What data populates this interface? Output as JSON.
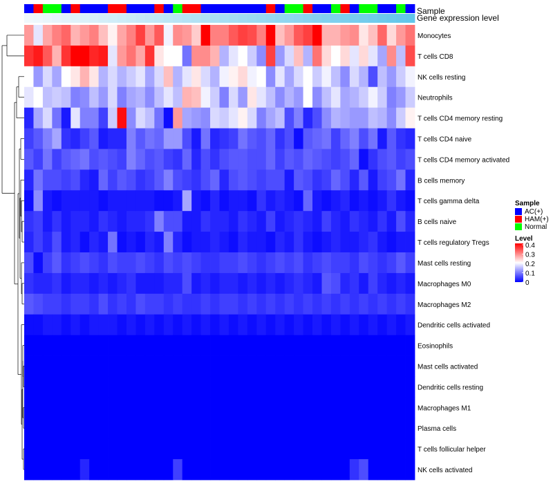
{
  "chart_data": {
    "type": "heatmap",
    "title": "",
    "annotation_rows": [
      "Sample",
      "Gene expression level"
    ],
    "sample_groups": [
      "AC(+)",
      "HAM(+)",
      "Normal",
      "Normal",
      "AC(+)",
      "HAM(+)",
      "AC(+)",
      "AC(+)",
      "AC(+)",
      "HAM(+)",
      "HAM(+)",
      "AC(+)",
      "AC(+)",
      "AC(+)",
      "HAM(+)",
      "AC(+)",
      "Normal",
      "HAM(+)",
      "HAM(+)",
      "AC(+)",
      "AC(+)",
      "AC(+)",
      "AC(+)",
      "AC(+)",
      "AC(+)",
      "AC(+)",
      "HAM(+)",
      "AC(+)",
      "Normal",
      "Normal",
      "HAM(+)",
      "AC(+)",
      "AC(+)",
      "Normal",
      "HAM(+)",
      "AC(+)",
      "Normal",
      "Normal",
      "AC(+)",
      "AC(+)",
      "Normal",
      "AC(+)"
    ],
    "expression_level": [
      0.3,
      0.34,
      0.38,
      0.42,
      0.46,
      0.5,
      0.54,
      0.58,
      0.62,
      0.66,
      0.7,
      0.74,
      0.78,
      0.82,
      0.86,
      0.9,
      0.94,
      0.98,
      1.02,
      1.06,
      1.1,
      1.14,
      1.18,
      1.22,
      1.26,
      1.3,
      1.34,
      1.38,
      1.42,
      1.46,
      1.5,
      1.54,
      1.58,
      1.62,
      1.66,
      1.7,
      1.74,
      1.78,
      1.82,
      1.86,
      1.9,
      1.94
    ],
    "rows": [
      "Monocytes",
      "T cells CD8",
      "NK cells resting",
      "Neutrophils",
      "T cells CD4 memory resting",
      "T cells CD4 naive",
      "T cells CD4 memory activated",
      "B cells memory",
      "T cells gamma delta",
      "B cells naive",
      "T cells regulatory  Tregs",
      "Mast cells resting",
      "Macrophages M0",
      "Macrophages M2",
      "Dendritic cells activated",
      "Eosinophils",
      "Mast cells activated",
      "Dendritic cells resting",
      "Macrophages M1",
      "Plasma cells",
      "T cells follicular helper",
      "NK cells activated"
    ],
    "values": [
      [
        0.28,
        0.18,
        0.27,
        0.3,
        0.32,
        0.26,
        0.28,
        0.3,
        0.25,
        0.21,
        0.27,
        0.3,
        0.35,
        0.28,
        0.33,
        0.19,
        0.29,
        0.28,
        0.24,
        0.4,
        0.3,
        0.3,
        0.33,
        0.35,
        0.34,
        0.3,
        0.4,
        0.25,
        0.28,
        0.33,
        0.35,
        0.4,
        0.26,
        0.26,
        0.28,
        0.29,
        0.22,
        0.25,
        0.32,
        0.23,
        0.28,
        0.31
      ],
      [
        0.36,
        0.38,
        0.33,
        0.26,
        0.36,
        0.42,
        0.4,
        0.37,
        0.38,
        0.18,
        0.28,
        0.31,
        0.27,
        0.36,
        0.22,
        0.2,
        0.2,
        0.09,
        0.29,
        0.29,
        0.26,
        0.14,
        0.18,
        0.2,
        0.16,
        0.11,
        0.35,
        0.12,
        0.17,
        0.25,
        0.14,
        0.31,
        0.23,
        0.2,
        0.23,
        0.18,
        0.23,
        0.18,
        0.13,
        0.29,
        0.15,
        0.34
      ],
      [
        0.2,
        0.12,
        0.17,
        0.13,
        0.2,
        0.22,
        0.26,
        0.22,
        0.14,
        0.17,
        0.14,
        0.16,
        0.18,
        0.13,
        0.17,
        0.25,
        0.14,
        0.18,
        0.22,
        0.17,
        0.14,
        0.19,
        0.21,
        0.23,
        0.19,
        0.2,
        0.11,
        0.18,
        0.13,
        0.17,
        0.2,
        0.16,
        0.19,
        0.15,
        0.11,
        0.17,
        0.14,
        0.06,
        0.15,
        0.12,
        0.16,
        0.19
      ],
      [
        0.18,
        0.2,
        0.15,
        0.16,
        0.15,
        0.1,
        0.11,
        0.15,
        0.12,
        0.17,
        0.1,
        0.13,
        0.14,
        0.11,
        0.15,
        0.18,
        0.15,
        0.26,
        0.25,
        0.19,
        0.16,
        0.1,
        0.17,
        0.12,
        0.22,
        0.18,
        0.15,
        0.11,
        0.14,
        0.12,
        0.2,
        0.11,
        0.15,
        0.18,
        0.13,
        0.14,
        0.16,
        0.19,
        0.16,
        0.1,
        0.12,
        0.16
      ],
      [
        0.03,
        0.13,
        0.17,
        0.09,
        0.02,
        0.18,
        0.1,
        0.1,
        0.05,
        0.16,
        0.39,
        0.11,
        0.17,
        0.15,
        0.09,
        0.01,
        0.28,
        0.13,
        0.12,
        0.11,
        0.17,
        0.16,
        0.18,
        0.21,
        0.17,
        0.1,
        0.13,
        0.15,
        0.06,
        0.1,
        0.03,
        0.06,
        0.11,
        0.14,
        0.13,
        0.12,
        0.12,
        0.15,
        0.14,
        0.11,
        0.16,
        0.21
      ],
      [
        0.05,
        0.07,
        0.1,
        0.13,
        0.04,
        0.03,
        0.05,
        0.07,
        0.02,
        0.03,
        0.03,
        0.1,
        0.07,
        0.09,
        0.08,
        0.12,
        0.12,
        0.06,
        0.02,
        0.09,
        0.03,
        0.04,
        0.05,
        0.09,
        0.07,
        0.06,
        0.08,
        0.04,
        0.06,
        0.01,
        0.07,
        0.08,
        0.09,
        0.05,
        0.08,
        0.1,
        0.06,
        0.09,
        0.02,
        0.07,
        0.04,
        0.03
      ],
      [
        0.07,
        0.05,
        0.09,
        0.05,
        0.07,
        0.08,
        0.09,
        0.06,
        0.07,
        0.06,
        0.05,
        0.1,
        0.08,
        0.06,
        0.07,
        0.05,
        0.04,
        0.08,
        0.03,
        0.06,
        0.04,
        0.06,
        0.07,
        0.07,
        0.06,
        0.06,
        0.08,
        0.05,
        0.07,
        0.06,
        0.08,
        0.07,
        0.06,
        0.05,
        0.06,
        0.08,
        0.01,
        0.04,
        0.06,
        0.07,
        0.05,
        0.06
      ],
      [
        0.03,
        0.09,
        0.06,
        0.06,
        0.05,
        0.06,
        0.03,
        0.02,
        0.08,
        0.05,
        0.07,
        0.06,
        0.04,
        0.05,
        0.07,
        0.1,
        0.06,
        0.05,
        0.04,
        0.06,
        0.08,
        0.03,
        0.06,
        0.07,
        0.06,
        0.05,
        0.06,
        0.06,
        0.02,
        0.07,
        0.06,
        0.04,
        0.05,
        0.08,
        0.06,
        0.03,
        0.07,
        0.02,
        0.05,
        0.06,
        0.09,
        0.03
      ],
      [
        0.01,
        0.11,
        0.02,
        0.01,
        0.02,
        0.02,
        0.02,
        0.02,
        0.01,
        0.02,
        0.02,
        0.02,
        0.02,
        0.02,
        0.01,
        0.01,
        0.02,
        0.13,
        0.02,
        0.01,
        0.03,
        0.01,
        0.02,
        0.02,
        0.01,
        0.04,
        0.02,
        0.03,
        0.02,
        0.01,
        0.08,
        0.02,
        0.01,
        0.02,
        0.03,
        0.01,
        0.02,
        0.01,
        0.02,
        0.04,
        0.02,
        0.01
      ],
      [
        0.04,
        0.05,
        0.02,
        0.04,
        0.02,
        0.03,
        0.03,
        0.02,
        0.04,
        0.03,
        0.02,
        0.03,
        0.03,
        0.04,
        0.1,
        0.06,
        0.06,
        0.02,
        0.02,
        0.04,
        0.03,
        0.03,
        0.02,
        0.04,
        0.03,
        0.02,
        0.05,
        0.02,
        0.03,
        0.04,
        0.03,
        0.02,
        0.05,
        0.03,
        0.02,
        0.04,
        0.03,
        0.02,
        0.04,
        0.02,
        0.06,
        0.03
      ],
      [
        0.03,
        0.05,
        0.03,
        0.06,
        0.02,
        0.03,
        0.01,
        0.03,
        0.02,
        0.09,
        0.01,
        0.02,
        0.01,
        0.03,
        0.02,
        0.1,
        0.03,
        0.01,
        0.02,
        0.02,
        0.03,
        0.02,
        0.01,
        0.03,
        0.02,
        0.02,
        0.01,
        0.03,
        0.02,
        0.04,
        0.02,
        0.01,
        0.02,
        0.03,
        0.02,
        0.02,
        0.03,
        0.04,
        0.02,
        0.01,
        0.02,
        0.02
      ],
      [
        0.06,
        0.01,
        0.05,
        0.07,
        0.04,
        0.05,
        0.06,
        0.05,
        0.04,
        0.06,
        0.05,
        0.05,
        0.06,
        0.05,
        0.04,
        0.06,
        0.05,
        0.06,
        0.05,
        0.04,
        0.04,
        0.05,
        0.05,
        0.06,
        0.05,
        0.04,
        0.05,
        0.06,
        0.05,
        0.06,
        0.04,
        0.05,
        0.06,
        0.05,
        0.05,
        0.04,
        0.06,
        0.05,
        0.04,
        0.05,
        0.07,
        0.05
      ],
      [
        0.04,
        0.03,
        0.03,
        0.04,
        0.02,
        0.03,
        0.03,
        0.02,
        0.03,
        0.02,
        0.03,
        0.04,
        0.02,
        0.02,
        0.02,
        0.03,
        0.03,
        0.06,
        0.02,
        0.03,
        0.02,
        0.03,
        0.03,
        0.02,
        0.03,
        0.02,
        0.03,
        0.02,
        0.03,
        0.04,
        0.03,
        0.02,
        0.07,
        0.06,
        0.03,
        0.04,
        0.02,
        0.05,
        0.03,
        0.02,
        0.03,
        0.02
      ],
      [
        0.07,
        0.06,
        0.05,
        0.05,
        0.04,
        0.05,
        0.05,
        0.04,
        0.06,
        0.04,
        0.05,
        0.04,
        0.06,
        0.05,
        0.05,
        0.04,
        0.05,
        0.04,
        0.04,
        0.05,
        0.04,
        0.05,
        0.05,
        0.04,
        0.05,
        0.04,
        0.05,
        0.04,
        0.05,
        0.04,
        0.05,
        0.04,
        0.05,
        0.04,
        0.05,
        0.04,
        0.05,
        0.04,
        0.05,
        0.04,
        0.05,
        0.04
      ],
      [
        0.01,
        0.01,
        0.02,
        0.02,
        0.01,
        0.02,
        0.01,
        0.02,
        0.02,
        0.02,
        0.01,
        0.02,
        0.01,
        0.02,
        0.01,
        0.02,
        0.01,
        0.02,
        0.01,
        0.02,
        0.01,
        0.02,
        0.01,
        0.02,
        0.01,
        0.02,
        0.01,
        0.02,
        0.01,
        0.02,
        0.01,
        0.02,
        0.01,
        0.02,
        0.01,
        0.02,
        0.01,
        0.02,
        0.01,
        0.02,
        0.01,
        0.02
      ],
      [
        0,
        0,
        0,
        0,
        0,
        0,
        0,
        0,
        0,
        0,
        0,
        0,
        0,
        0,
        0,
        0,
        0,
        0,
        0,
        0,
        0,
        0,
        0,
        0,
        0,
        0,
        0,
        0,
        0,
        0,
        0,
        0,
        0,
        0,
        0,
        0,
        0,
        0,
        0,
        0,
        0,
        0
      ],
      [
        0,
        0,
        0,
        0,
        0,
        0,
        0,
        0,
        0,
        0,
        0,
        0,
        0,
        0,
        0,
        0,
        0,
        0,
        0,
        0,
        0,
        0,
        0,
        0,
        0,
        0,
        0,
        0,
        0,
        0,
        0,
        0,
        0,
        0,
        0,
        0,
        0,
        0,
        0,
        0,
        0,
        0
      ],
      [
        0,
        0,
        0,
        0,
        0,
        0,
        0,
        0,
        0,
        0,
        0,
        0,
        0,
        0,
        0,
        0,
        0,
        0,
        0,
        0,
        0,
        0,
        0,
        0,
        0,
        0,
        0,
        0,
        0,
        0,
        0,
        0,
        0,
        0,
        0,
        0,
        0,
        0,
        0,
        0,
        0,
        0
      ],
      [
        0,
        0,
        0,
        0,
        0,
        0,
        0,
        0,
        0,
        0,
        0,
        0,
        0,
        0,
        0,
        0,
        0,
        0,
        0,
        0,
        0,
        0,
        0,
        0,
        0,
        0,
        0,
        0,
        0,
        0,
        0,
        0,
        0,
        0,
        0,
        0,
        0,
        0,
        0,
        0,
        0,
        0
      ],
      [
        0,
        0,
        0,
        0,
        0,
        0,
        0,
        0,
        0,
        0,
        0,
        0,
        0,
        0,
        0,
        0,
        0,
        0,
        0,
        0,
        0,
        0,
        0,
        0,
        0,
        0,
        0,
        0,
        0,
        0,
        0,
        0,
        0,
        0,
        0,
        0,
        0,
        0,
        0,
        0,
        0,
        0
      ],
      [
        0,
        0,
        0,
        0,
        0,
        0,
        0,
        0,
        0,
        0,
        0,
        0,
        0,
        0,
        0,
        0,
        0,
        0,
        0,
        0,
        0,
        0,
        0,
        0,
        0,
        0,
        0,
        0,
        0,
        0,
        0,
        0,
        0,
        0,
        0,
        0,
        0,
        0,
        0,
        0,
        0,
        0
      ],
      [
        0,
        0,
        0,
        0,
        0,
        0,
        0.03,
        0,
        0,
        0,
        0,
        0,
        0,
        0,
        0,
        0,
        0.05,
        0,
        0,
        0,
        0,
        0,
        0,
        0,
        0,
        0,
        0,
        0,
        0,
        0,
        0,
        0,
        0,
        0,
        0,
        0.04,
        0.06,
        0,
        0,
        0,
        0,
        0
      ]
    ],
    "legend": {
      "sample": {
        "title": "Sample",
        "entries": [
          "AC(+)",
          "HAM(+)",
          "Normal"
        ],
        "colors": [
          "#0000ff",
          "#ff0000",
          "#00ff00"
        ]
      },
      "level": {
        "title": "Level",
        "ticks": [
          "0.4",
          "0.3",
          "0.2",
          "0.1",
          "0"
        ],
        "tick_values": [
          0.4,
          0.3,
          0.2,
          0.1,
          0
        ],
        "range": [
          0,
          0.4
        ]
      }
    },
    "expression_colors": {
      "low": "#f0f8fc",
      "high": "#62c6ea"
    },
    "colorscale": {
      "low": "#0000ff",
      "mid": "#ffffff",
      "high": "#ff0000",
      "midpoint": 0.2
    },
    "legend_placement": "right"
  }
}
